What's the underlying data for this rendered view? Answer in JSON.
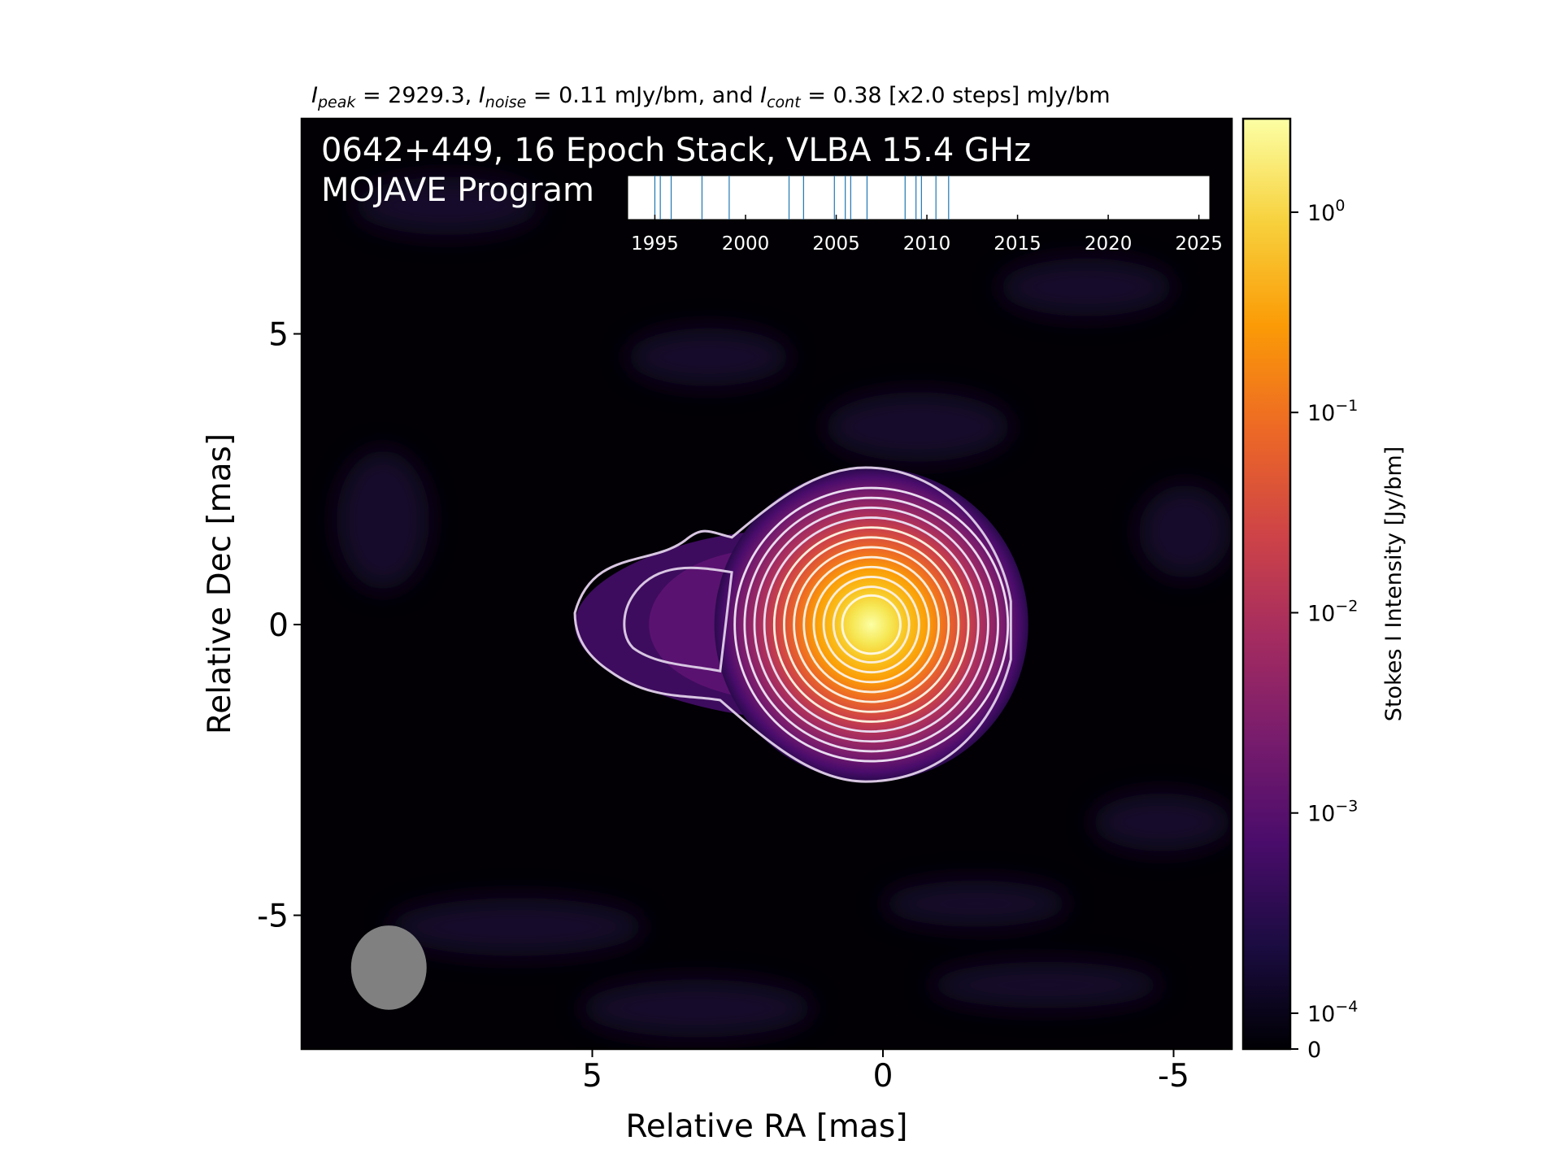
{
  "chart_data": {
    "type": "heatmap",
    "title_parts": [
      {
        "italic": true,
        "text": "I"
      },
      {
        "sub": true,
        "italic": true,
        "text": "peak"
      },
      {
        "text": " = 2929.3, "
      },
      {
        "italic": true,
        "text": "I"
      },
      {
        "sub": true,
        "italic": true,
        "text": "noise"
      },
      {
        "text": " = 0.11 mJy/bm, and "
      },
      {
        "italic": true,
        "text": "I"
      },
      {
        "sub": true,
        "italic": true,
        "text": "cont"
      },
      {
        "text": " = 0.38 [x2.0 steps] mJy/bm"
      }
    ],
    "overlay_line1": "0642+449, 16 Epoch Stack, VLBA 15.4 GHz",
    "overlay_line2": "MOJAVE Program",
    "xlabel": "Relative RA [mas]",
    "ylabel": "Relative Dec [mas]",
    "xlim": [
      10,
      -6
    ],
    "ylim": [
      -7.3,
      8.7
    ],
    "xticks": [
      5,
      0,
      -5
    ],
    "xtick_labels": [
      "5",
      "0",
      "-5"
    ],
    "yticks": [
      5,
      0,
      -5
    ],
    "ytick_labels": [
      "5",
      "0",
      "-5"
    ],
    "colormap": "inferno",
    "colorbar": {
      "label": "Stokes I Intensity [Jy/bm]",
      "scale": "log",
      "ticks": [
        0,
        0.0001,
        0.001,
        0.01,
        0.1,
        1
      ],
      "tick_labels": [
        {
          "base": "0",
          "exp": ""
        },
        {
          "base": "10",
          "exp": "−4"
        },
        {
          "base": "10",
          "exp": "−3"
        },
        {
          "base": "10",
          "exp": "−2"
        },
        {
          "base": "10",
          "exp": "−1"
        },
        {
          "base": "10",
          "exp": "0"
        }
      ],
      "colors": [
        "#000004",
        "#1b0c41",
        "#4a0c6b",
        "#781c6d",
        "#a52c60",
        "#cf4446",
        "#ed6925",
        "#fb9b06",
        "#f7d13d",
        "#fcffa4"
      ]
    },
    "source": {
      "core_ra": 0.2,
      "core_dec": 0.0,
      "peak_jy_per_bm": 2.9293,
      "jet_direction": "east",
      "jet_extent_ra": 5.3
    },
    "contour_levels_mjy": [
      0.38,
      0.76,
      1.52,
      3.04,
      6.08,
      12.16,
      24.32,
      48.64,
      97.28,
      194.56,
      389.12,
      778.24,
      1556.48
    ],
    "beam": {
      "ra": 8.5,
      "dec": -5.9,
      "major_mas": 1.45,
      "minor_mas": 1.3,
      "color": "#808080"
    },
    "epochs": {
      "years": [
        1995.0,
        1995.3,
        1995.9,
        1997.6,
        1999.1,
        2002.4,
        2003.2,
        2004.9,
        2005.5,
        2005.8,
        2006.7,
        2008.8,
        2009.4,
        2009.7,
        2010.5,
        2011.2
      ],
      "xlim": [
        1993.5,
        2025.6
      ],
      "ticks": [
        1995,
        2000,
        2005,
        2010,
        2015,
        2020,
        2025
      ],
      "tick_labels": [
        "1995",
        "2000",
        "2005",
        "2010",
        "2015",
        "2020",
        "2025"
      ],
      "line_color": "#1f77b4"
    }
  }
}
